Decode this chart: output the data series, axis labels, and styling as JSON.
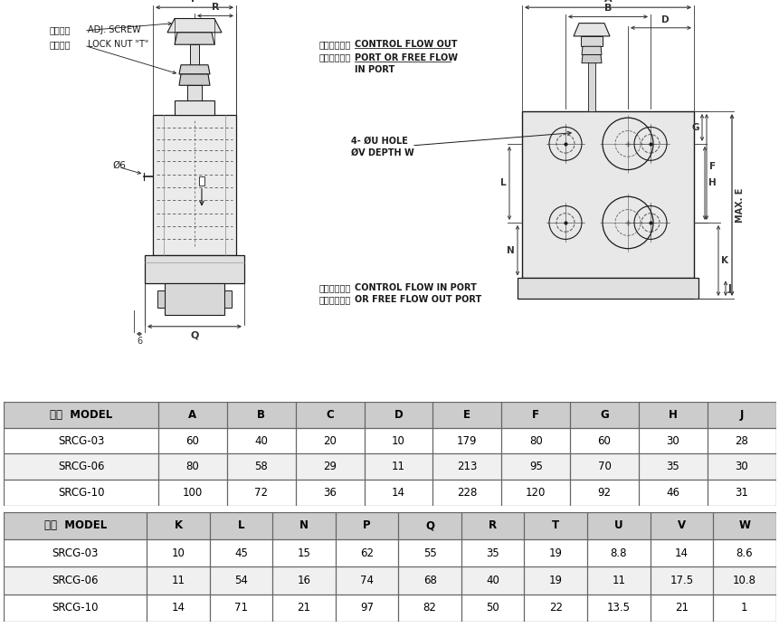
{
  "table1_headers": [
    "型式  MODEL",
    "A",
    "B",
    "C",
    "D",
    "E",
    "F",
    "G",
    "H",
    "J"
  ],
  "table1_rows": [
    [
      "SRCG-03",
      "60",
      "40",
      "20",
      "10",
      "179",
      "80",
      "60",
      "30",
      "28"
    ],
    [
      "SRCG-06",
      "80",
      "58",
      "29",
      "11",
      "213",
      "95",
      "70",
      "35",
      "30"
    ],
    [
      "SRCG-10",
      "100",
      "72",
      "36",
      "14",
      "228",
      "120",
      "92",
      "46",
      "31"
    ]
  ],
  "table2_headers": [
    "型式  MODEL",
    "K",
    "L",
    "N",
    "P",
    "Q",
    "R",
    "T",
    "U",
    "V",
    "W"
  ],
  "table2_rows": [
    [
      "SRCG-03",
      "10",
      "45",
      "15",
      "62",
      "55",
      "35",
      "19",
      "8.8",
      "14",
      "8.6"
    ],
    [
      "SRCG-06",
      "11",
      "54",
      "16",
      "74",
      "68",
      "40",
      "19",
      "11",
      "17.5",
      "10.8"
    ],
    [
      "SRCG-10",
      "14",
      "71",
      "21",
      "97",
      "82",
      "50",
      "22",
      "13.5",
      "21",
      "1"
    ]
  ],
  "header_bg": "#cccccc",
  "row_bg_white": "#ffffff",
  "row_bg_gray": "#f0f0f0",
  "border_color": "#666666",
  "text_color": "#000000",
  "bg_color": "#ffffff",
  "lc": "#1a1a1a",
  "dc": "#333333"
}
